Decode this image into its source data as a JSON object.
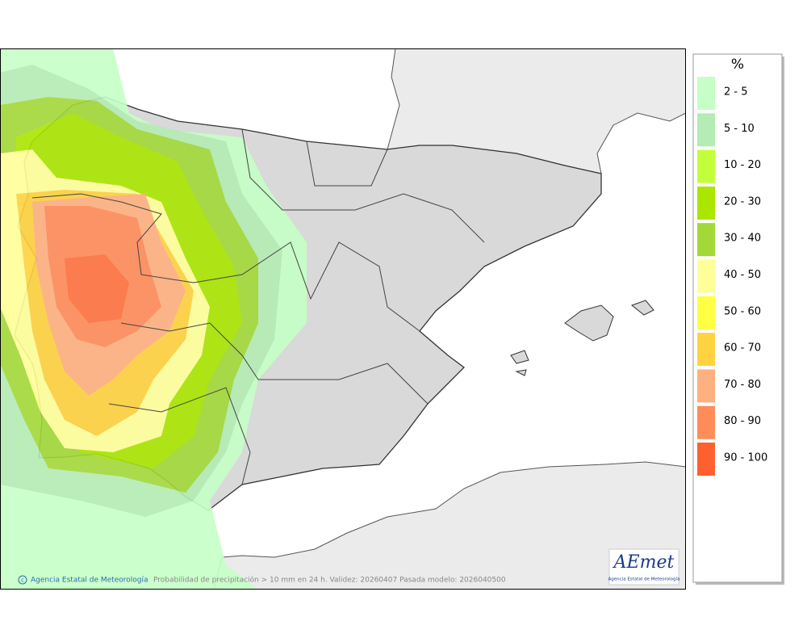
{
  "legend": {
    "unit": "%",
    "items": [
      {
        "label": "2 - 5",
        "color": "#c6ffc6"
      },
      {
        "label": "5 - 10",
        "color": "#b4ecb4"
      },
      {
        "label": "10 - 20",
        "color": "#c2ff3a"
      },
      {
        "label": "20 - 30",
        "color": "#aae600"
      },
      {
        "label": "30 - 40",
        "color": "#a2d838"
      },
      {
        "label": "40 - 50",
        "color": "#ffff99"
      },
      {
        "label": "50 - 60",
        "color": "#ffff44"
      },
      {
        "label": "60 - 70",
        "color": "#ffd240"
      },
      {
        "label": "70 - 80",
        "color": "#ffb080"
      },
      {
        "label": "80 - 90",
        "color": "#ff8c5a"
      },
      {
        "label": "90 - 100",
        "color": "#ff6030"
      }
    ]
  },
  "footer": {
    "credit": "Agencia Estatal de Meteorología",
    "caption": "Probabilidad de precipitación > 10 mm en 24 h. Validez: 20260407 Pasada modelo: 2026040500"
  },
  "logo": {
    "name": "AEmet",
    "subtitle": "Agencia Estatal de Meteorología"
  }
}
